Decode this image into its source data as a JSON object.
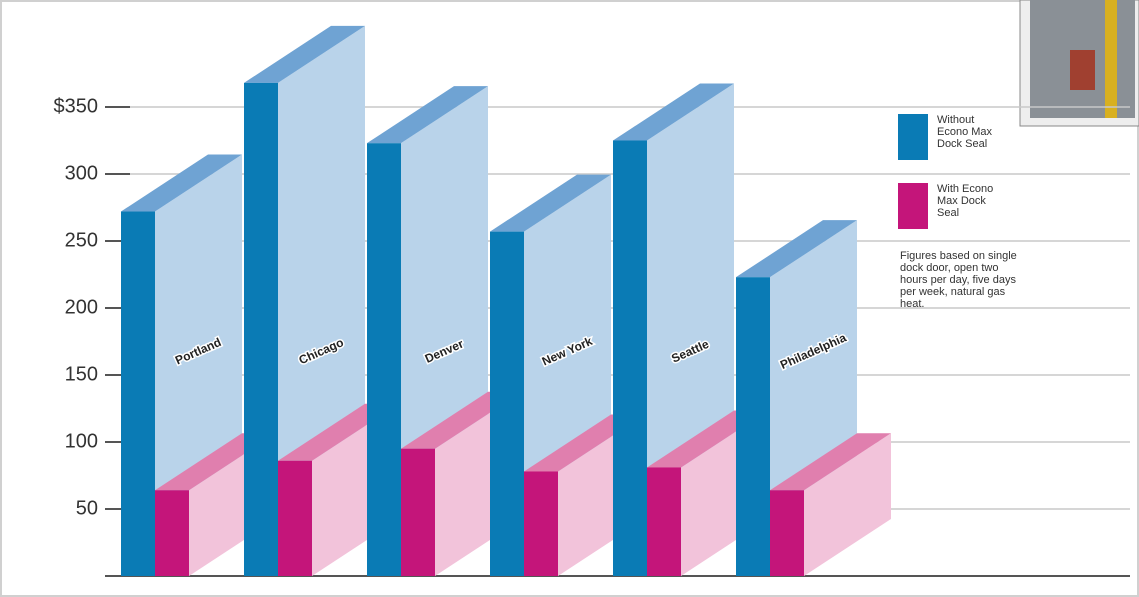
{
  "chart_data": {
    "type": "bar3d",
    "categories": [
      "Portland",
      "Chicago",
      "Denver",
      "New York",
      "Seattle",
      "Philadelphia"
    ],
    "series": [
      {
        "name": "Without Econo Max Dock Seal",
        "color": "#0a7bb5",
        "values": [
          272,
          368,
          323,
          257,
          325,
          223
        ]
      },
      {
        "name": "With Econo Max Dock Seal",
        "color": "#c4157a",
        "values": [
          64,
          86,
          95,
          78,
          81,
          64
        ]
      }
    ],
    "ylim": [
      0,
      400
    ],
    "yticks": [
      50,
      100,
      150,
      200,
      250,
      300,
      {
        "value": 350,
        "label": "$350"
      }
    ],
    "grid": true,
    "note": "Figures based on single dock door, open two hours per day, five days per week, natural gas heat."
  }
}
